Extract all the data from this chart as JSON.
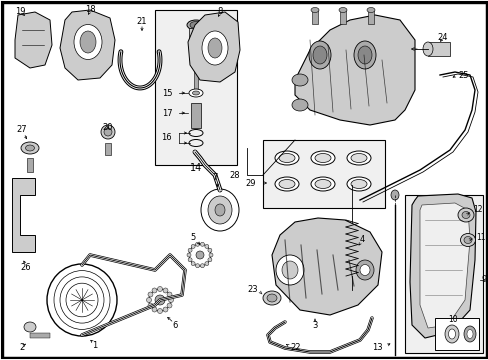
{
  "bg_color": "#ffffff",
  "line_color": "#000000",
  "text_color": "#000000",
  "box_fill": "#e8e8e8",
  "light_gray": "#cccccc",
  "mid_gray": "#aaaaaa",
  "dark_gray": "#888888"
}
